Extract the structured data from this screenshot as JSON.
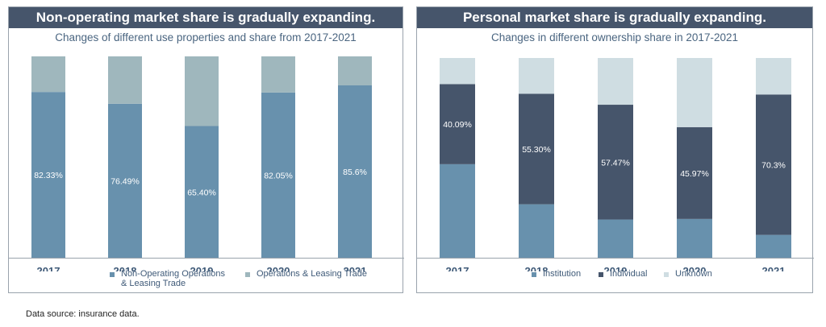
{
  "source_note": "Data source: insurance data.",
  "chart_data": [
    {
      "type": "bar",
      "stacked": true,
      "header": "Non-operating market share is gradually expanding.",
      "title": "Changes of different use properties and share from 2017-2021",
      "categories": [
        "2017",
        "2018",
        "2019",
        "2020",
        "2021"
      ],
      "ylim": [
        0,
        1
      ],
      "grid": false,
      "legend_position": "bottom",
      "series": [
        {
          "name": "Non-Operating Operations & Leasing Trade",
          "legend_lines": [
            "Non-Operating Operations",
            "& Leasing Trade"
          ],
          "values": [
            0.8233,
            0.7649,
            0.654,
            0.8205,
            0.856
          ],
          "labels": [
            "82.33%",
            "76.49%",
            "65.40%",
            "82.05%",
            "85.6%"
          ],
          "color": "#6891ad"
        },
        {
          "name": "Operations & Leasing Trade",
          "legend_lines": [
            "Operations & Leasing Trade"
          ],
          "values": [
            0.1767,
            0.2351,
            0.346,
            0.1795,
            0.144
          ],
          "labels": [
            "",
            "",
            "",
            "",
            ""
          ],
          "color": "#9fb7bd"
        }
      ]
    },
    {
      "type": "bar",
      "stacked": true,
      "header": "Personal market share is gradually expanding.",
      "title": "Changes in different ownership share in 2017-2021",
      "categories": [
        "2017",
        "2018",
        "2019",
        "2020",
        "2021"
      ],
      "ylim": [
        0,
        1
      ],
      "grid": false,
      "legend_position": "bottom",
      "series": [
        {
          "name": "Institution",
          "legend_lines": [
            "Institution"
          ],
          "values": [
            0.4683,
            0.2676,
            0.1913,
            0.1941,
            0.1143
          ],
          "labels": [
            "",
            "",
            "",
            "",
            ""
          ],
          "color": "#6891ad"
        },
        {
          "name": "Individual",
          "legend_lines": [
            "Individual"
          ],
          "values": [
            0.4009,
            0.553,
            0.5747,
            0.4597,
            0.703
          ],
          "labels": [
            "40.09%",
            "55.30%",
            "57.47%",
            "45.97%",
            "70.3%"
          ],
          "color": "#46556b"
        },
        {
          "name": "Unknown",
          "legend_lines": [
            "Unknown"
          ],
          "values": [
            0.1308,
            0.1794,
            0.234,
            0.3462,
            0.1827
          ],
          "labels": [
            "",
            "",
            "",
            "",
            ""
          ],
          "color": "#cfdde2"
        }
      ]
    }
  ]
}
